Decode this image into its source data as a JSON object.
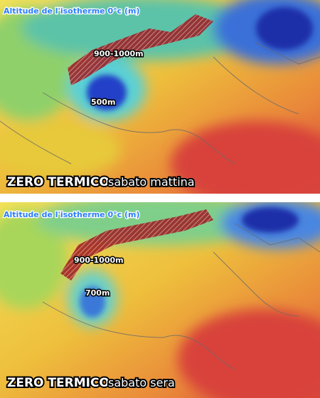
{
  "panels": [
    {
      "legend_title": "Altitude de l'isotherme 0°c (m)",
      "labels": [
        "900-1000m",
        "500m"
      ],
      "caption_title": "ZERO TERMICO",
      "caption_time": "sabato mattina"
    },
    {
      "legend_title": "Altitude de l'isotherme 0°c (m)",
      "labels": [
        "900-1000m",
        "700m"
      ],
      "caption_title": "ZERO TERMICO",
      "caption_time": "sabato sera"
    }
  ]
}
